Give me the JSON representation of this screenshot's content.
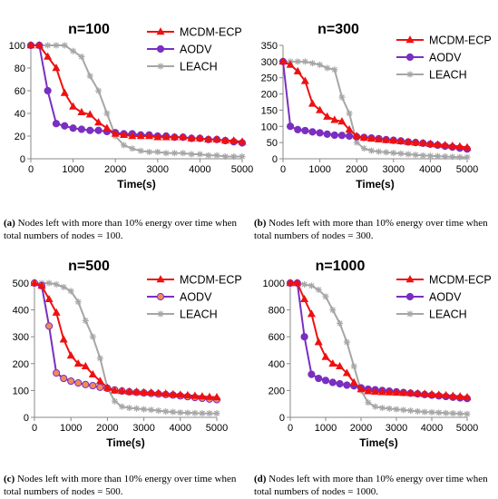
{
  "colors": {
    "mcdm": "#ee1111",
    "aodv": "#7a2fc0",
    "leach": "#a6a6a6",
    "aodv_marker_fill_500": "#f08a5a"
  },
  "icons": {
    "mcdm": "triangle-marker",
    "aodv": "circle-marker",
    "leach": "asterisk-marker"
  },
  "captions": [
    {
      "label": "(a)",
      "text": " Nodes left with more than 10% energy over time when total numbers of nodes = 100."
    },
    {
      "label": "(b)",
      "text": " Nodes left with more than 10% energy over time when total numbers of nodes = 300."
    },
    {
      "label": "(c)",
      "text": " Nodes left with more than 10% energy over time when total numbers of nodes = 500."
    },
    {
      "label": "(d)",
      "text": " Nodes left with more than 10% energy over time when total numbers of nodes = 1000."
    }
  ],
  "chart_data": [
    {
      "type": "line",
      "title": "n=100",
      "xlabel": "Time(s)",
      "ylabel": "",
      "xlim": [
        0,
        5000
      ],
      "ylim": [
        0,
        100
      ],
      "xticks": [
        "0",
        "1000",
        "2000",
        "3000",
        "4000",
        "5000"
      ],
      "yticks": [
        "0",
        "20",
        "40",
        "60",
        "80",
        "100"
      ],
      "legend": "top-right",
      "series": [
        {
          "name": "MCDM-ECP",
          "x": [
            0,
            200,
            400,
            600,
            800,
            1000,
            1200,
            1400,
            1600,
            1800,
            2000,
            2200,
            2400,
            2600,
            2800,
            3000,
            3200,
            3400,
            3600,
            3800,
            4000,
            4200,
            4400,
            4600,
            4800,
            5000
          ],
          "values": [
            100,
            100,
            90,
            80,
            58,
            46,
            41,
            39,
            32,
            27,
            22,
            21,
            20,
            20,
            20,
            19,
            19,
            19,
            19,
            18,
            18,
            17,
            17,
            16,
            16,
            15
          ]
        },
        {
          "name": "AODV",
          "x": [
            0,
            200,
            400,
            600,
            800,
            1000,
            1200,
            1400,
            1600,
            1800,
            2000,
            2200,
            2400,
            2600,
            2800,
            3000,
            3200,
            3400,
            3600,
            3800,
            4000,
            4200,
            4400,
            4600,
            4800,
            5000
          ],
          "values": [
            100,
            100,
            60,
            31,
            29,
            27,
            26,
            25,
            25,
            24,
            23,
            22,
            22,
            21,
            21,
            20,
            20,
            19,
            19,
            18,
            18,
            17,
            17,
            16,
            15,
            14
          ]
        },
        {
          "name": "LEACH",
          "x": [
            0,
            200,
            400,
            600,
            800,
            1000,
            1200,
            1400,
            1600,
            1800,
            2000,
            2200,
            2400,
            2600,
            2800,
            3000,
            3200,
            3400,
            3600,
            3800,
            4000,
            4200,
            4400,
            4600,
            4800,
            5000
          ],
          "values": [
            100,
            100,
            100,
            100,
            100,
            95,
            90,
            73,
            60,
            40,
            20,
            12,
            9,
            7,
            6,
            6,
            5,
            5,
            5,
            4,
            4,
            3,
            3,
            2,
            2,
            2
          ]
        }
      ]
    },
    {
      "type": "line",
      "title": "n=300",
      "xlabel": "Time(s)",
      "ylabel": "",
      "xlim": [
        0,
        5000
      ],
      "ylim": [
        0,
        350
      ],
      "xticks": [
        "0",
        "1000",
        "2000",
        "3000",
        "4000",
        "5000"
      ],
      "yticks": [
        "0",
        "50",
        "100",
        "150",
        "200",
        "250",
        "300",
        "350"
      ],
      "legend": "top-right",
      "series": [
        {
          "name": "MCDM-ECP",
          "x": [
            0,
            200,
            400,
            600,
            800,
            1000,
            1200,
            1400,
            1600,
            1800,
            2000,
            2200,
            2400,
            2600,
            2800,
            3000,
            3200,
            3400,
            3600,
            3800,
            4000,
            4200,
            4400,
            4600,
            4800,
            5000
          ],
          "values": [
            300,
            290,
            270,
            240,
            170,
            150,
            130,
            120,
            115,
            90,
            70,
            65,
            62,
            60,
            58,
            56,
            54,
            52,
            50,
            48,
            46,
            44,
            42,
            40,
            38,
            35
          ]
        },
        {
          "name": "AODV",
          "x": [
            0,
            200,
            400,
            600,
            800,
            1000,
            1200,
            1400,
            1600,
            1800,
            2000,
            2200,
            2400,
            2600,
            2800,
            3000,
            3200,
            3400,
            3600,
            3800,
            4000,
            4200,
            4400,
            4600,
            4800,
            5000
          ],
          "values": [
            300,
            100,
            90,
            87,
            83,
            80,
            76,
            73,
            72,
            70,
            68,
            66,
            64,
            62,
            59,
            57,
            55,
            52,
            50,
            48,
            45,
            42,
            39,
            36,
            33,
            30
          ]
        },
        {
          "name": "LEACH",
          "x": [
            0,
            200,
            400,
            600,
            800,
            1000,
            1200,
            1400,
            1600,
            1800,
            2000,
            2200,
            2400,
            2600,
            2800,
            3000,
            3200,
            3400,
            3600,
            3800,
            4000,
            4200,
            4400,
            4600,
            4800,
            5000
          ],
          "values": [
            300,
            300,
            300,
            300,
            295,
            290,
            280,
            275,
            190,
            140,
            50,
            32,
            25,
            22,
            20,
            18,
            16,
            14,
            12,
            10,
            9,
            8,
            7,
            6,
            5,
            5
          ]
        }
      ]
    },
    {
      "type": "line",
      "title": "n=500",
      "xlabel": "Time(s)",
      "ylabel": "",
      "xlim": [
        0,
        5000
      ],
      "ylim": [
        0,
        500
      ],
      "xticks": [
        "0",
        "1000",
        "2000",
        "3000",
        "4000",
        "5000"
      ],
      "yticks": [
        "0",
        "100",
        "200",
        "300",
        "400",
        "500"
      ],
      "legend": "top-right",
      "series": [
        {
          "name": "MCDM-ECP",
          "x": [
            0,
            200,
            400,
            600,
            800,
            1000,
            1200,
            1400,
            1600,
            1800,
            2000,
            2200,
            2400,
            2600,
            2800,
            3000,
            3200,
            3400,
            3600,
            3800,
            4000,
            4200,
            4400,
            4600,
            4800,
            5000
          ],
          "values": [
            500,
            490,
            440,
            390,
            290,
            230,
            200,
            190,
            160,
            135,
            110,
            100,
            98,
            96,
            95,
            93,
            92,
            90,
            88,
            86,
            84,
            82,
            80,
            78,
            76,
            75
          ]
        },
        {
          "name": "AODV",
          "x": [
            0,
            200,
            400,
            600,
            800,
            1000,
            1200,
            1400,
            1600,
            1800,
            2000,
            2200,
            2400,
            2600,
            2800,
            3000,
            3200,
            3400,
            3600,
            3800,
            4000,
            4200,
            4400,
            4600,
            4800,
            5000
          ],
          "values": [
            500,
            490,
            340,
            165,
            145,
            135,
            128,
            122,
            118,
            112,
            108,
            102,
            98,
            95,
            93,
            91,
            89,
            87,
            85,
            83,
            80,
            77,
            74,
            71,
            68,
            66
          ]
        },
        {
          "name": "LEACH",
          "x": [
            0,
            200,
            400,
            600,
            800,
            1000,
            1200,
            1400,
            1600,
            1800,
            2000,
            2200,
            2400,
            2600,
            2800,
            3000,
            3200,
            3400,
            3600,
            3800,
            4000,
            4200,
            4400,
            4600,
            4800,
            5000
          ],
          "values": [
            500,
            500,
            500,
            495,
            485,
            470,
            430,
            360,
            300,
            220,
            110,
            60,
            40,
            35,
            33,
            30,
            28,
            25,
            22,
            20,
            18,
            17,
            16,
            15,
            15,
            15
          ]
        }
      ]
    },
    {
      "type": "line",
      "title": "n=1000",
      "xlabel": "Time(s)",
      "ylabel": "",
      "xlim": [
        0,
        5000
      ],
      "ylim": [
        0,
        1000
      ],
      "xticks": [
        "0",
        "1000",
        "2000",
        "3000",
        "4000",
        "5000"
      ],
      "yticks": [
        "0",
        "200",
        "400",
        "600",
        "800",
        "1000"
      ],
      "legend": "top-right",
      "series": [
        {
          "name": "MCDM-ECP",
          "x": [
            0,
            200,
            400,
            600,
            800,
            1000,
            1200,
            1400,
            1600,
            1800,
            2000,
            2200,
            2400,
            2600,
            2800,
            3000,
            3200,
            3400,
            3600,
            3800,
            4000,
            4200,
            4400,
            4600,
            4800,
            5000
          ],
          "values": [
            1000,
            1000,
            880,
            770,
            560,
            450,
            400,
            380,
            330,
            260,
            210,
            195,
            190,
            188,
            186,
            184,
            182,
            180,
            178,
            175,
            172,
            168,
            164,
            160,
            156,
            150
          ]
        },
        {
          "name": "AODV",
          "x": [
            0,
            200,
            400,
            600,
            800,
            1000,
            1200,
            1400,
            1600,
            1800,
            2000,
            2200,
            2400,
            2600,
            2800,
            3000,
            3200,
            3400,
            3600,
            3800,
            4000,
            4200,
            4400,
            4600,
            4800,
            5000
          ],
          "values": [
            1000,
            1000,
            600,
            320,
            290,
            275,
            260,
            250,
            240,
            235,
            220,
            210,
            205,
            200,
            195,
            190,
            185,
            180,
            175,
            170,
            165,
            160,
            155,
            150,
            145,
            140
          ]
        },
        {
          "name": "LEACH",
          "x": [
            0,
            200,
            400,
            600,
            800,
            1000,
            1200,
            1400,
            1600,
            1800,
            2000,
            2200,
            2400,
            2600,
            2800,
            3000,
            3200,
            3400,
            3600,
            3800,
            4000,
            4200,
            4400,
            4600,
            4800,
            5000
          ],
          "values": [
            1000,
            1000,
            990,
            980,
            950,
            900,
            800,
            700,
            560,
            380,
            200,
            110,
            80,
            70,
            65,
            60,
            55,
            50,
            45,
            40,
            38,
            35,
            32,
            30,
            28,
            25
          ]
        }
      ]
    }
  ]
}
